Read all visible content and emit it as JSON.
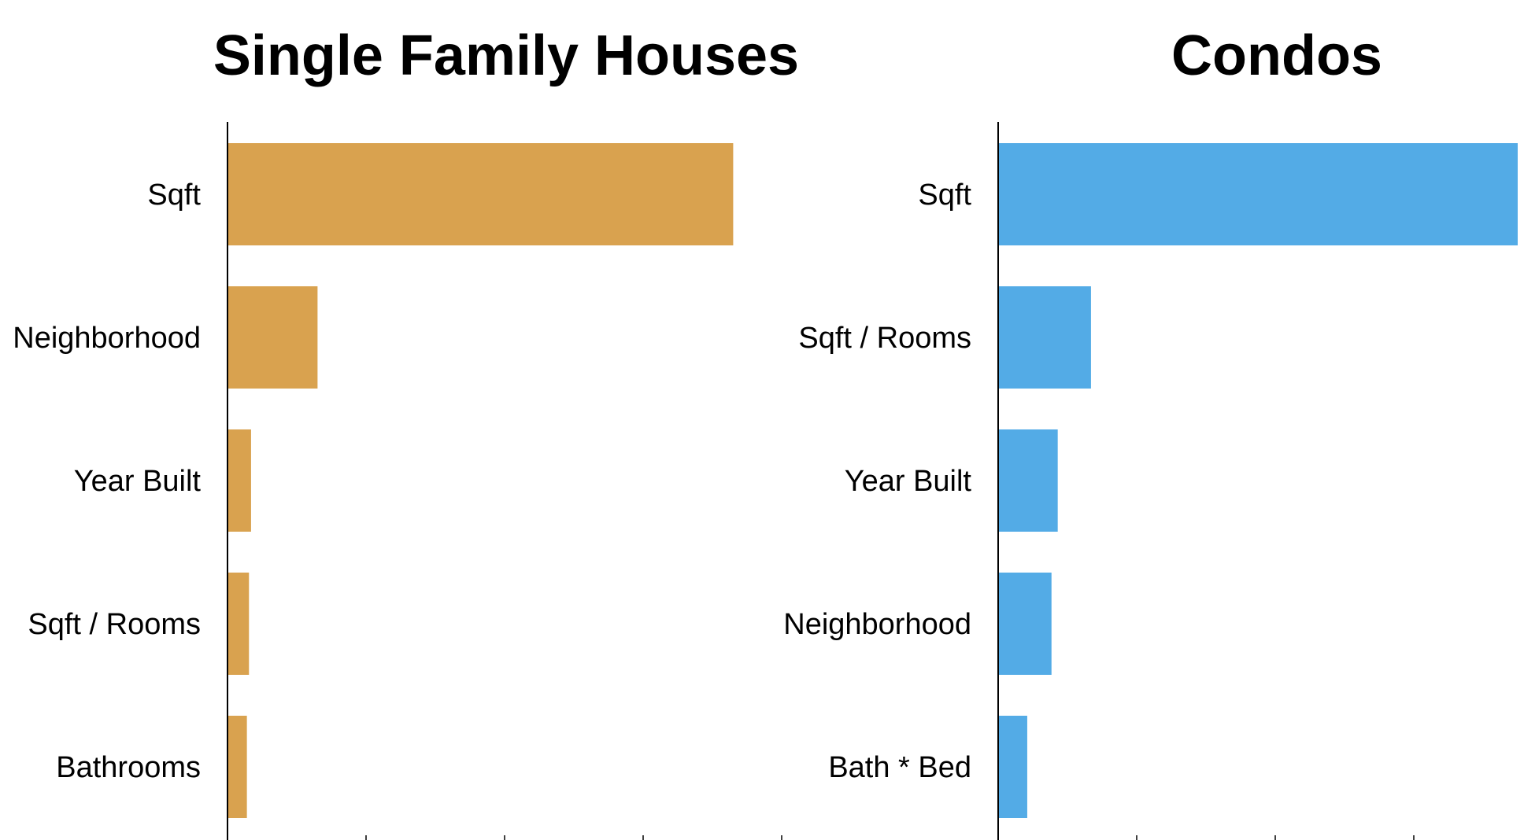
{
  "chart_data": [
    {
      "type": "bar",
      "orientation": "horizontal",
      "title": "Single Family Houses",
      "categories": [
        "Sqft",
        "Neighborhood",
        "Year Built",
        "Sqft / Rooms",
        "Bathrooms"
      ],
      "values": [
        0.73,
        0.13,
        0.034,
        0.031,
        0.028
      ],
      "xlim": [
        0,
        1.0
      ],
      "xlabel": "",
      "ylabel": "",
      "grid": false,
      "legend": "none",
      "color": "#d9a24f"
    },
    {
      "type": "bar",
      "orientation": "horizontal",
      "title": "Condos",
      "categories": [
        "Sqft",
        "Sqft / Rooms",
        "Year Built",
        "Neighborhood",
        "Bath * Bed"
      ],
      "values": [
        0.75,
        0.134,
        0.086,
        0.077,
        0.042
      ],
      "xlim": [
        0,
        1.0
      ],
      "xlabel": "",
      "ylabel": "",
      "grid": false,
      "legend": "none",
      "color": "#53abe6"
    }
  ]
}
